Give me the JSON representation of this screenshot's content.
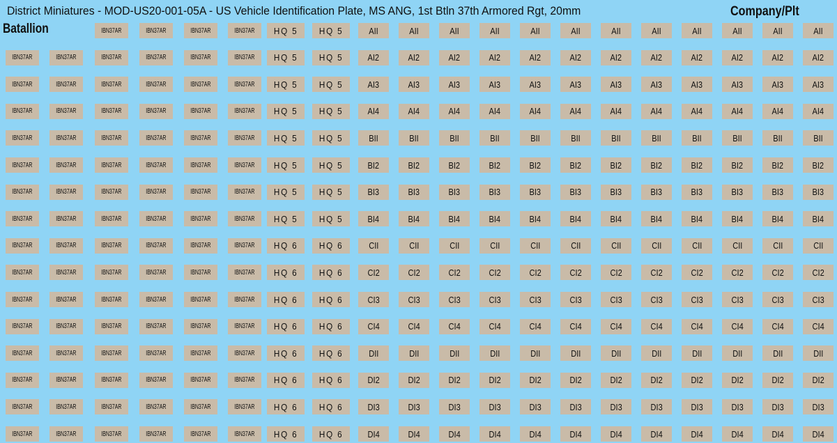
{
  "header": {
    "title": "District Miniatures - MOD-US20-001-05A - US Vehicle Identification Plate, MS ANG, 1st Btln 37th Armored Rgt, 20mm",
    "battalion_label": "Batallion",
    "company_label": "Company/Plt"
  },
  "rows": [
    {
      "battalion": [
        "IBN37AR",
        "IBN37AR",
        "IBN37AR",
        "IBN37AR"
      ],
      "hq": [
        "HQ 5",
        "HQ 5"
      ],
      "company": [
        "AII",
        "AII",
        "AII",
        "AII",
        "AII",
        "AII",
        "AII",
        "AII",
        "AII",
        "AII",
        "AII",
        "AII"
      ]
    },
    {
      "battalion": [
        "IBN37AR",
        "IBN37AR",
        "IBN37AR",
        "IBN37AR",
        "IBN37AR",
        "IBN37AR"
      ],
      "hq": [
        "HQ 5",
        "HQ 5"
      ],
      "company": [
        "AI2",
        "AI2",
        "AI2",
        "AI2",
        "AI2",
        "AI2",
        "AI2",
        "AI2",
        "AI2",
        "AI2",
        "AI2",
        "AI2"
      ]
    },
    {
      "battalion": [
        "IBN37AR",
        "IBN37AR",
        "IBN37AR",
        "IBN37AR",
        "IBN37AR",
        "IBN37AR"
      ],
      "hq": [
        "HQ 5",
        "HQ 5"
      ],
      "company": [
        "AI3",
        "AI3",
        "AI3",
        "AI3",
        "AI3",
        "AI3",
        "AI3",
        "AI3",
        "AI3",
        "AI3",
        "AI3",
        "AI3"
      ]
    },
    {
      "battalion": [
        "IBN37AR",
        "IBN37AR",
        "IBN37AR",
        "IBN37AR",
        "IBN37AR",
        "IBN37AR"
      ],
      "hq": [
        "HQ 5",
        "HQ 5"
      ],
      "company": [
        "AI4",
        "AI4",
        "AI4",
        "AI4",
        "AI4",
        "AI4",
        "AI4",
        "AI4",
        "AI4",
        "AI4",
        "AI4",
        "AI4"
      ]
    },
    {
      "battalion": [
        "IBN37AR",
        "IBN37AR",
        "IBN37AR",
        "IBN37AR",
        "IBN37AR",
        "IBN37AR"
      ],
      "hq": [
        "HQ 5",
        "HQ 5"
      ],
      "company": [
        "BII",
        "BII",
        "BII",
        "BII",
        "BII",
        "BII",
        "BII",
        "BII",
        "BII",
        "BII",
        "BII",
        "BII"
      ]
    },
    {
      "battalion": [
        "IBN37AR",
        "IBN37AR",
        "IBN37AR",
        "IBN37AR",
        "IBN37AR",
        "IBN37AR"
      ],
      "hq": [
        "HQ 5",
        "HQ 5"
      ],
      "company": [
        "BI2",
        "BI2",
        "BI2",
        "BI2",
        "BI2",
        "BI2",
        "BI2",
        "BI2",
        "BI2",
        "BI2",
        "BI2",
        "BI2"
      ]
    },
    {
      "battalion": [
        "IBN37AR",
        "IBN37AR",
        "IBN37AR",
        "IBN37AR",
        "IBN37AR",
        "IBN37AR"
      ],
      "hq": [
        "HQ 5",
        "HQ 5"
      ],
      "company": [
        "BI3",
        "BI3",
        "BI3",
        "BI3",
        "BI3",
        "BI3",
        "BI3",
        "BI3",
        "BI3",
        "BI3",
        "BI3",
        "BI3"
      ]
    },
    {
      "battalion": [
        "IBN37AR",
        "IBN37AR",
        "IBN37AR",
        "IBN37AR",
        "IBN37AR",
        "IBN37AR"
      ],
      "hq": [
        "HQ 5",
        "HQ 5"
      ],
      "company": [
        "BI4",
        "BI4",
        "BI4",
        "BI4",
        "BI4",
        "BI4",
        "BI4",
        "BI4",
        "BI4",
        "BI4",
        "BI4",
        "BI4"
      ]
    },
    {
      "battalion": [
        "IBN37AR",
        "IBN37AR",
        "IBN37AR",
        "IBN37AR",
        "IBN37AR",
        "IBN37AR"
      ],
      "hq": [
        "HQ 6",
        "HQ 6"
      ],
      "company": [
        "CII",
        "CII",
        "CII",
        "CII",
        "CII",
        "CII",
        "CII",
        "CII",
        "CII",
        "CII",
        "CII",
        "CII"
      ]
    },
    {
      "battalion": [
        "IBN37AR",
        "IBN37AR",
        "IBN37AR",
        "IBN37AR",
        "IBN37AR",
        "IBN37AR"
      ],
      "hq": [
        "HQ 6",
        "HQ 6"
      ],
      "company": [
        "CI2",
        "CI2",
        "CI2",
        "CI2",
        "CI2",
        "CI2",
        "CI2",
        "CI2",
        "CI2",
        "CI2",
        "CI2",
        "CI2"
      ]
    },
    {
      "battalion": [
        "IBN37AR",
        "IBN37AR",
        "IBN37AR",
        "IBN37AR",
        "IBN37AR",
        "IBN37AR"
      ],
      "hq": [
        "HQ 6",
        "HQ 6"
      ],
      "company": [
        "CI3",
        "CI3",
        "CI3",
        "CI3",
        "CI3",
        "CI3",
        "CI3",
        "CI3",
        "CI3",
        "CI3",
        "CI3",
        "CI3"
      ]
    },
    {
      "battalion": [
        "IBN37AR",
        "IBN37AR",
        "IBN37AR",
        "IBN37AR",
        "IBN37AR",
        "IBN37AR"
      ],
      "hq": [
        "HQ 6",
        "HQ 6"
      ],
      "company": [
        "CI4",
        "CI4",
        "CI4",
        "CI4",
        "CI4",
        "CI4",
        "CI4",
        "CI4",
        "CI4",
        "CI4",
        "CI4",
        "CI4"
      ]
    },
    {
      "battalion": [
        "IBN37AR",
        "IBN37AR",
        "IBN37AR",
        "IBN37AR",
        "IBN37AR",
        "IBN37AR"
      ],
      "hq": [
        "HQ 6",
        "HQ 6"
      ],
      "company": [
        "DII",
        "DII",
        "DII",
        "DII",
        "DII",
        "DII",
        "DII",
        "DII",
        "DII",
        "DII",
        "DII",
        "DII"
      ]
    },
    {
      "battalion": [
        "IBN37AR",
        "IBN37AR",
        "IBN37AR",
        "IBN37AR",
        "IBN37AR",
        "IBN37AR"
      ],
      "hq": [
        "HQ 6",
        "HQ 6"
      ],
      "company": [
        "DI2",
        "DI2",
        "DI2",
        "DI2",
        "DI2",
        "DI2",
        "DI2",
        "DI2",
        "DI2",
        "DI2",
        "DI2",
        "DI2"
      ]
    },
    {
      "battalion": [
        "IBN37AR",
        "IBN37AR",
        "IBN37AR",
        "IBN37AR",
        "IBN37AR",
        "IBN37AR"
      ],
      "hq": [
        "HQ 6",
        "HQ 6"
      ],
      "company": [
        "DI3",
        "DI3",
        "DI3",
        "DI3",
        "DI3",
        "DI3",
        "DI3",
        "DI3",
        "DI3",
        "DI3",
        "DI3",
        "DI3"
      ]
    },
    {
      "battalion": [
        "IBN37AR",
        "IBN37AR",
        "IBN37AR",
        "IBN37AR",
        "IBN37AR",
        "IBN37AR"
      ],
      "hq": [
        "HQ 6",
        "HQ 6"
      ],
      "company": [
        "DI4",
        "DI4",
        "DI4",
        "DI4",
        "DI4",
        "DI4",
        "DI4",
        "DI4",
        "DI4",
        "DI4",
        "DI4",
        "DI4"
      ]
    }
  ]
}
